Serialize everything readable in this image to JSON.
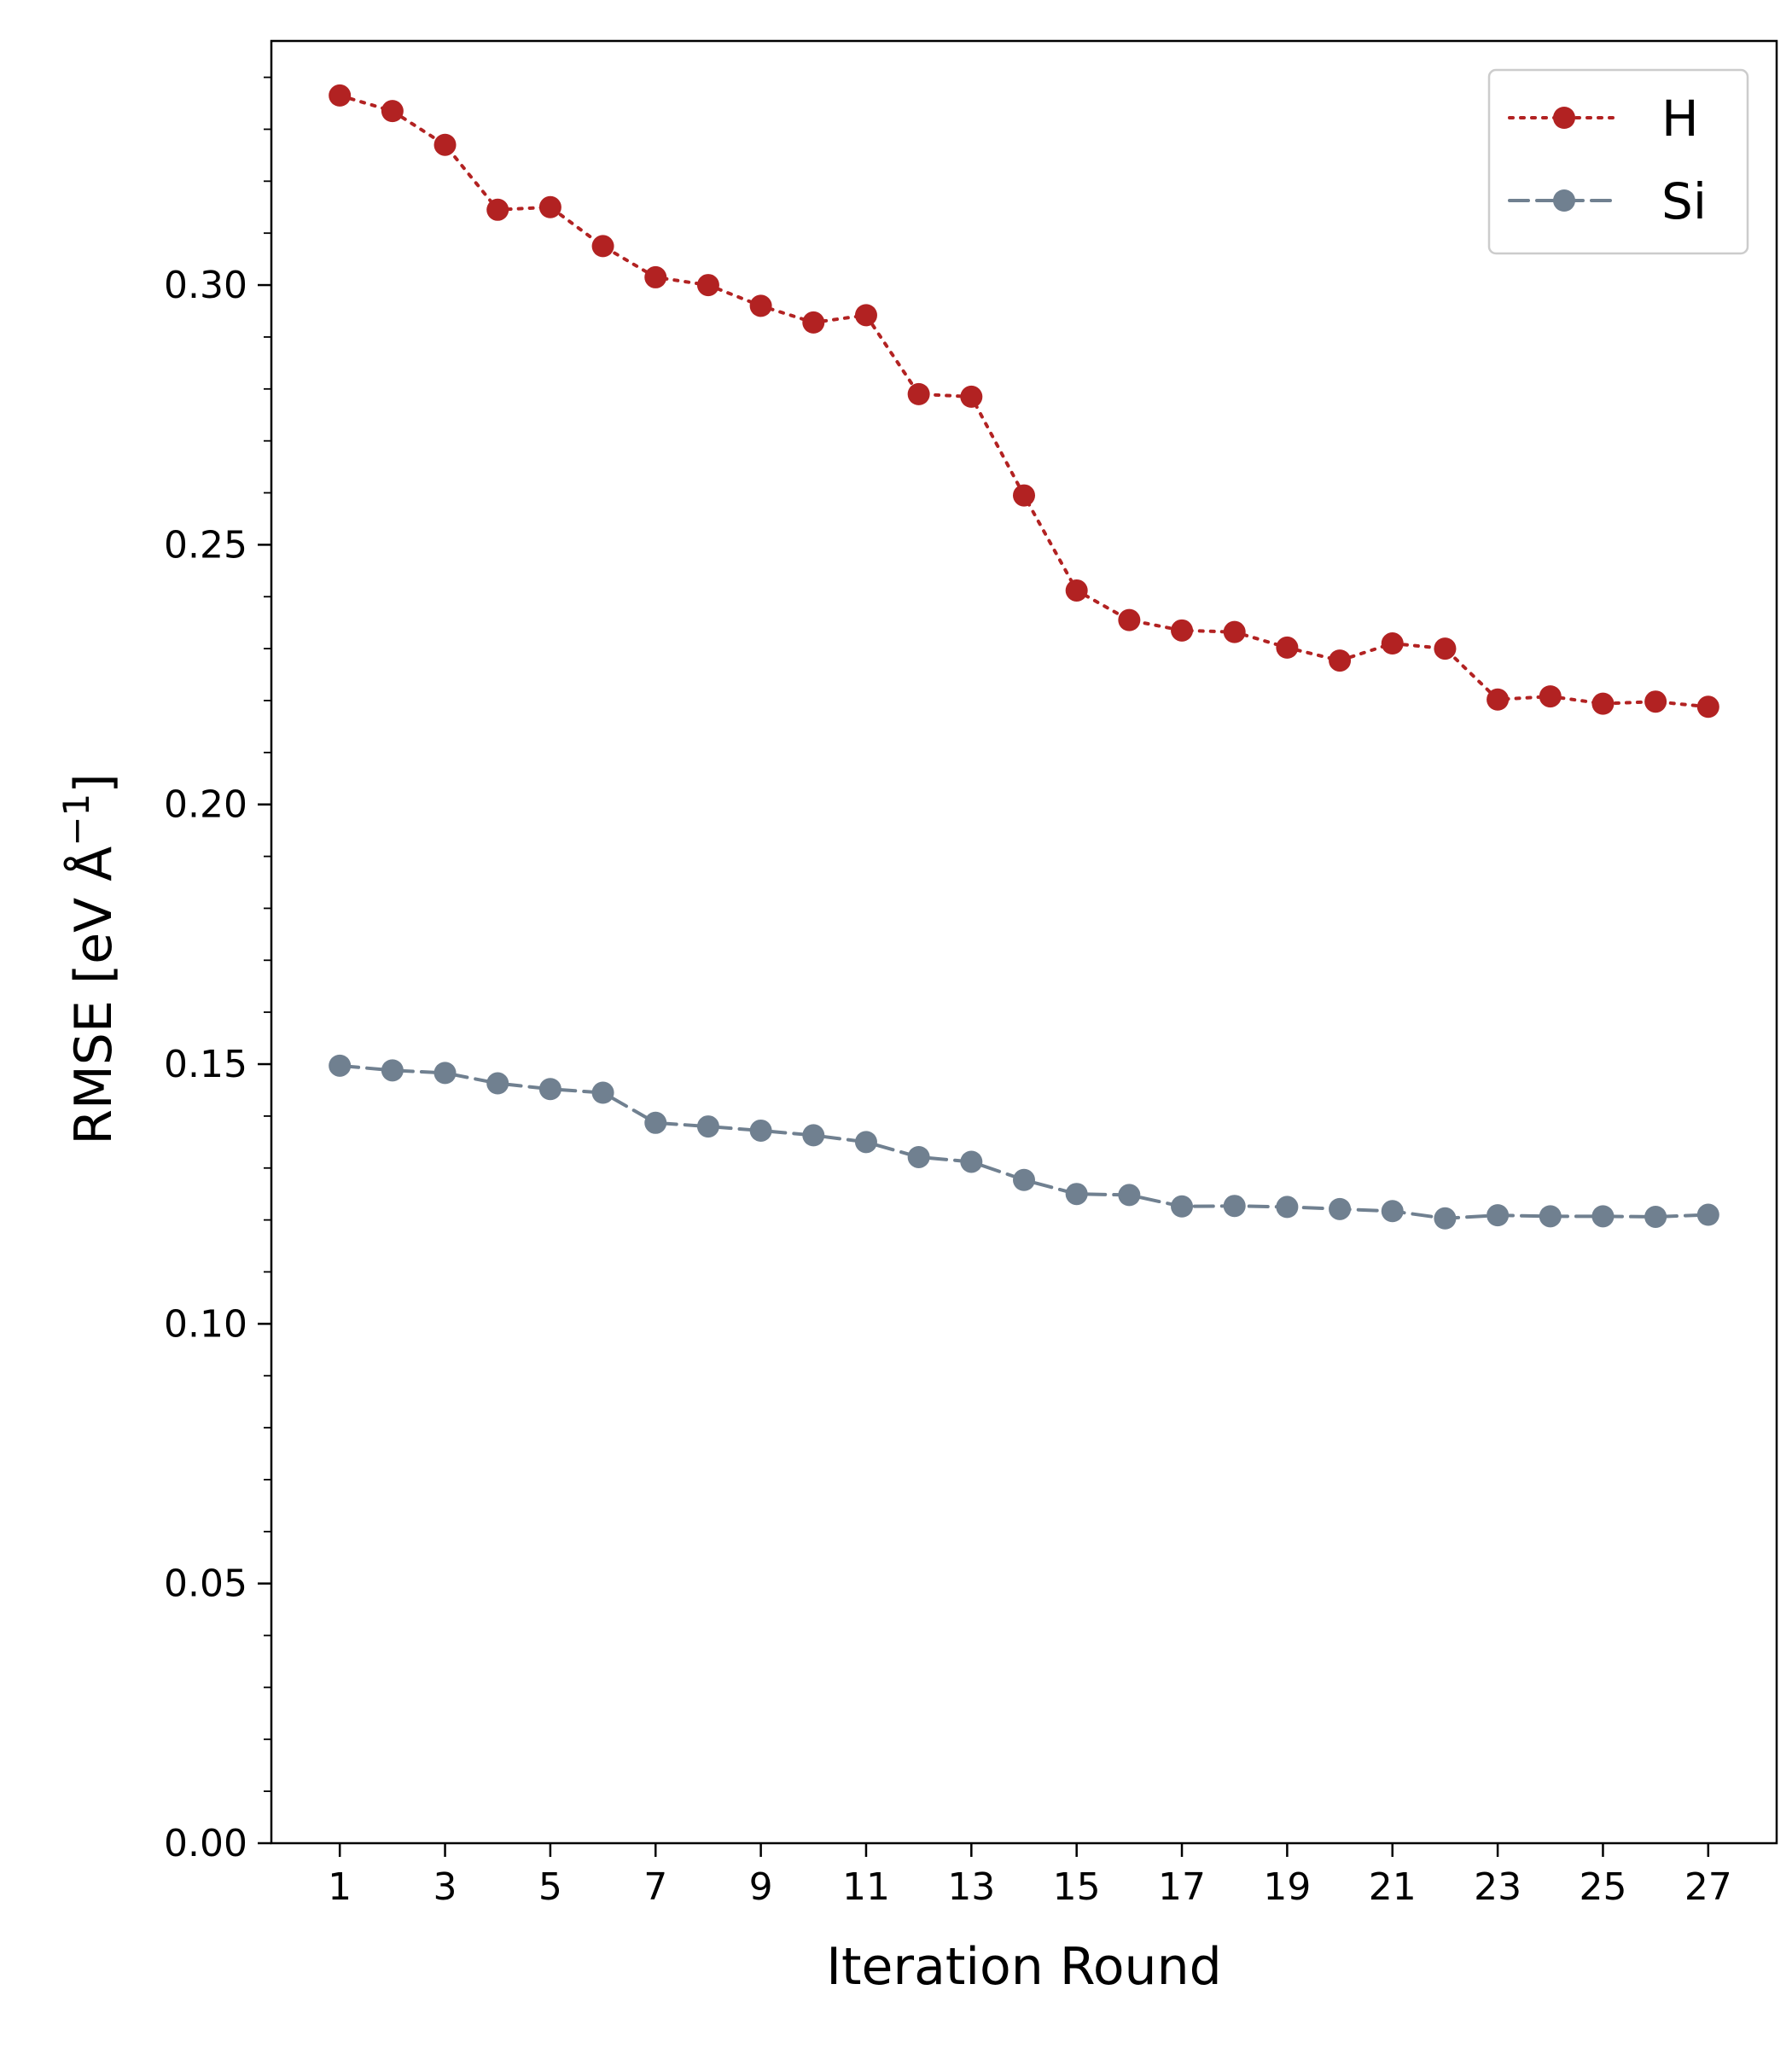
{
  "chart_data": {
    "type": "line",
    "title": "",
    "xlabel": "Iteration Round",
    "ylabel_text": "RMSE [eV Å",
    "ylabel_sup": "−1",
    "ylabel_close": "]",
    "ylim": [
      0,
      0.347
    ],
    "y_ticks": [
      "0.00",
      "0.05",
      "0.10",
      "0.15",
      "0.20",
      "0.25",
      "0.30"
    ],
    "y_tick_values": [
      0,
      0.05,
      0.1,
      0.15,
      0.2,
      0.25,
      0.3
    ],
    "x_ticks": [
      "1",
      "3",
      "5",
      "7",
      "9",
      "11",
      "13",
      "15",
      "17",
      "19",
      "21",
      "23",
      "25",
      "27"
    ],
    "x_tick_values": [
      1,
      3,
      5,
      7,
      9,
      11,
      13,
      15,
      17,
      19,
      21,
      23,
      25,
      27
    ],
    "xlim": [
      -0.3,
      28.3
    ],
    "x": [
      1,
      2,
      3,
      4,
      5,
      6,
      7,
      8,
      9,
      10,
      11,
      12,
      13,
      14,
      15,
      16,
      17,
      18,
      19,
      20,
      21,
      22,
      23,
      24,
      25,
      26,
      27
    ],
    "legend_position": "top-right",
    "series": [
      {
        "name": "H",
        "color": "#b22222",
        "linestyle": "dotted",
        "values": [
          0.3365,
          0.3335,
          0.327,
          0.3145,
          0.315,
          0.3075,
          0.3015,
          0.3,
          0.296,
          0.2928,
          0.2942,
          0.279,
          0.2785,
          0.2595,
          0.2412,
          0.2355,
          0.2335,
          0.2332,
          0.2302,
          0.2277,
          0.231,
          0.23,
          0.2202,
          0.2208,
          0.2194,
          0.2198,
          0.2188
        ]
      },
      {
        "name": "Si",
        "color": "#708090",
        "linestyle": "dashed",
        "values": [
          0.1497,
          0.1488,
          0.1483,
          0.1463,
          0.1452,
          0.1445,
          0.1387,
          0.138,
          0.1372,
          0.1363,
          0.135,
          0.1321,
          0.1312,
          0.1277,
          0.125,
          0.1248,
          0.1226,
          0.1227,
          0.1225,
          0.1221,
          0.1217,
          0.1203,
          0.1209,
          0.1207,
          0.1207,
          0.1206,
          0.121
        ]
      }
    ]
  }
}
